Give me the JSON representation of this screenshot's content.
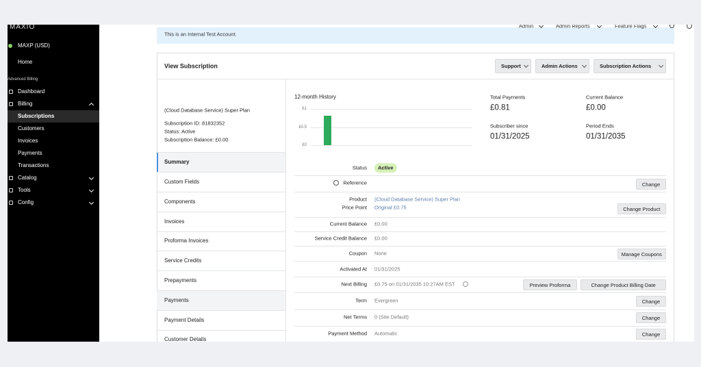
{
  "sidebar": {
    "logo": "MAXIO",
    "account": "MAXP (USD)",
    "home": "Home",
    "section": "Advanced Billing",
    "items": [
      "Dashboard",
      "Billing",
      "Subscriptions",
      "Customers",
      "Invoices",
      "Payments",
      "Transactions",
      "Catalog",
      "Tools",
      "Config"
    ]
  },
  "topnav": [
    "Admin",
    "Admin Reports",
    "Feature Flags"
  ],
  "banner": "This is an Internal Test Account.",
  "header": {
    "title": "View Subscription",
    "buttons": [
      "Support",
      "Admin Actions",
      "Subscription Actions"
    ]
  },
  "summary": {
    "plan": "(Cloud Database Service) Super Plan",
    "subscription_id": "Subscription ID: 81832352",
    "status": "Status: Active",
    "balance": "Subscription Balance: £0.00"
  },
  "tabs": [
    "Summary",
    "Custom Fields",
    "Components",
    "Invoices",
    "Proforma Invoices",
    "Service Credits",
    "Prepayments",
    "Payments",
    "Payment Details",
    "Customer Details"
  ],
  "history": {
    "title": "12-month History",
    "yticks": [
      {
        "value": 1,
        "label": "£1"
      },
      {
        "value": 0.5,
        "label": "£0.5"
      },
      {
        "value": 0,
        "label": "£0"
      }
    ],
    "ylim": [
      0,
      1
    ],
    "values": [
      0.81
    ]
  },
  "stats": [
    {
      "label": "Total Payments",
      "value": "£0.81"
    },
    {
      "label": "Current Balance",
      "value": "£0.00"
    },
    {
      "label": "Subscriber since",
      "value": "01/31/2025"
    },
    {
      "label": "Period Ends",
      "value": "01/31/2035"
    }
  ],
  "details": [
    {
      "label": "Status",
      "value": "Active"
    },
    {
      "label": "Reference",
      "buttons": [
        "Change"
      ]
    },
    {
      "label": "Product",
      "value": "(Cloud Database Service) Super Plan"
    },
    {
      "label": "Price Point",
      "value": "Original £0.75",
      "buttons": [
        "Change Product"
      ]
    },
    {
      "label": "Current Balance",
      "value": "£0.00"
    },
    {
      "label": "Service Credit Balance",
      "value": "£0.00"
    },
    {
      "label": "Coupon",
      "value": "None",
      "buttons": [
        "Manage Coupons"
      ]
    },
    {
      "label": "Activated At",
      "value": "01/31/2025"
    },
    {
      "label": "Next Billing",
      "value": "£0.75 on 01/31/2035 10:27AM EST",
      "buttons": [
        "Preview Proforma",
        "Change Product Billing Date"
      ]
    },
    {
      "label": "Term",
      "value": "Evergreen",
      "buttons": [
        "Change"
      ]
    },
    {
      "label": "Net Terms",
      "value": "0 (Site Default)",
      "buttons": [
        "Change"
      ]
    },
    {
      "label": "Payment Method",
      "value": "Automatic",
      "buttons": [
        "Change"
      ]
    }
  ]
}
